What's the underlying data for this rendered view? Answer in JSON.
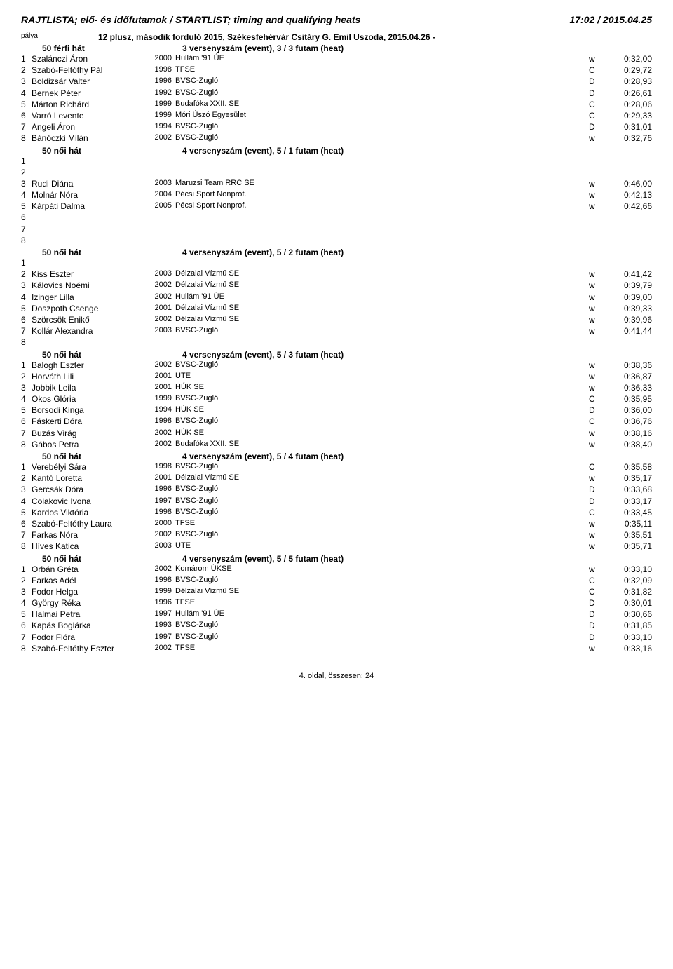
{
  "header": {
    "title": "RAJTLISTA; elő- és időfutamok / STARTLIST; timing and qualifying heats",
    "datetime": "17:02 / 2015.04.25"
  },
  "subheader": {
    "palya": "pálya",
    "title": "12 plusz, második forduló 2015, Székesfehérvár Csitáry G. Emil Uszoda, 2015.04.26 -"
  },
  "sections": [
    {
      "event_name": "50 férfi hát",
      "event_desc": "3 versenyszám (event),  3 / 3 futam (heat)",
      "rows": [
        {
          "n": "1",
          "name": "Szalánczi Áron",
          "y": "2000",
          "club": "Hullám '91 ÚE",
          "cat": "w",
          "t": "0:32,00"
        },
        {
          "n": "2",
          "name": "Szabó-Feltóthy Pál",
          "y": "1998",
          "club": "TFSE",
          "cat": "C",
          "t": "0:29,72"
        },
        {
          "n": "3",
          "name": "Boldizsár Valter",
          "y": "1996",
          "club": "BVSC-Zugló",
          "cat": "D",
          "t": "0:28,93"
        },
        {
          "n": "4",
          "name": "Bernek Péter",
          "y": "1992",
          "club": "BVSC-Zugló",
          "cat": "D",
          "t": "0:26,61"
        },
        {
          "n": "5",
          "name": "Márton Richárd",
          "y": "1999",
          "club": "Budafóka XXII. SE",
          "cat": "C",
          "t": "0:28,06"
        },
        {
          "n": "6",
          "name": "Varró Levente",
          "y": "1999",
          "club": "Móri Úszó Egyesület",
          "cat": "C",
          "t": "0:29,33"
        },
        {
          "n": "7",
          "name": "Angeli Áron",
          "y": "1994",
          "club": "BVSC-Zugló",
          "cat": "D",
          "t": "0:31,01"
        },
        {
          "n": "8",
          "name": "Bánóczki Milán",
          "y": "2002",
          "club": "BVSC-Zugló",
          "cat": "w",
          "t": "0:32,76"
        }
      ]
    },
    {
      "event_name": "50 női hát",
      "event_desc": "4 versenyszám (event),  5 / 1 futam (heat)",
      "rows": [
        {
          "n": "1",
          "name": "",
          "y": "",
          "club": "",
          "cat": "",
          "t": ""
        },
        {
          "n": "2",
          "name": "",
          "y": "",
          "club": "",
          "cat": "",
          "t": ""
        },
        {
          "n": "3",
          "name": "Rudi Diána",
          "y": "2003",
          "club": "Maruzsi Team RRC SE",
          "cat": "w",
          "t": "0:46,00"
        },
        {
          "n": "4",
          "name": "Molnár Nóra",
          "y": "2004",
          "club": "Pécsi Sport Nonprof.",
          "cat": "w",
          "t": "0:42,13"
        },
        {
          "n": "5",
          "name": "Kárpáti Dalma",
          "y": "2005",
          "club": "Pécsi Sport Nonprof.",
          "cat": "w",
          "t": "0:42,66"
        },
        {
          "n": "6",
          "name": "",
          "y": "",
          "club": "",
          "cat": "",
          "t": ""
        },
        {
          "n": "7",
          "name": "",
          "y": "",
          "club": "",
          "cat": "",
          "t": ""
        },
        {
          "n": "8",
          "name": "",
          "y": "",
          "club": "",
          "cat": "",
          "t": ""
        }
      ]
    },
    {
      "event_name": "50 női hát",
      "event_desc": "4 versenyszám (event),  5 / 2 futam (heat)",
      "rows": [
        {
          "n": "1",
          "name": "",
          "y": "",
          "club": "",
          "cat": "",
          "t": ""
        },
        {
          "n": "2",
          "name": "Kiss Eszter",
          "y": "2003",
          "club": "Délzalai Vízmű SE",
          "cat": "w",
          "t": "0:41,42"
        },
        {
          "n": "3",
          "name": "Kálovics Noémi",
          "y": "2002",
          "club": "Délzalai Vízmű SE",
          "cat": "w",
          "t": "0:39,79"
        },
        {
          "n": "4",
          "name": "Izinger Lilla",
          "y": "2002",
          "club": "Hullám '91 ÚE",
          "cat": "w",
          "t": "0:39,00"
        },
        {
          "n": "5",
          "name": "Doszpoth Csenge",
          "y": "2001",
          "club": "Délzalai Vízmű SE",
          "cat": "w",
          "t": "0:39,33"
        },
        {
          "n": "6",
          "name": "Szörcsök Enikő",
          "y": "2002",
          "club": "Délzalai Vízmű SE",
          "cat": "w",
          "t": "0:39,96"
        },
        {
          "n": "7",
          "name": "Kollár Alexandra",
          "y": "2003",
          "club": "BVSC-Zugló",
          "cat": "w",
          "t": "0:41,44"
        },
        {
          "n": "8",
          "name": "",
          "y": "",
          "club": "",
          "cat": "",
          "t": ""
        }
      ]
    },
    {
      "event_name": "50 női hát",
      "event_desc": "4 versenyszám (event),  5 / 3 futam (heat)",
      "rows": [
        {
          "n": "1",
          "name": "Balogh Eszter",
          "y": "2002",
          "club": "BVSC-Zugló",
          "cat": "w",
          "t": "0:38,36"
        },
        {
          "n": "2",
          "name": "Horváth Lili",
          "y": "2001",
          "club": "UTE",
          "cat": "w",
          "t": "0:36,87"
        },
        {
          "n": "3",
          "name": "Jobbik Leila",
          "y": "2001",
          "club": "HÚK SE",
          "cat": "w",
          "t": "0:36,33"
        },
        {
          "n": "4",
          "name": "Okos Glória",
          "y": "1999",
          "club": "BVSC-Zugló",
          "cat": "C",
          "t": "0:35,95"
        },
        {
          "n": "5",
          "name": "Borsodi Kinga",
          "y": "1994",
          "club": "HÚK SE",
          "cat": "D",
          "t": "0:36,00"
        },
        {
          "n": "6",
          "name": "Fáskerti Dóra",
          "y": "1998",
          "club": "BVSC-Zugló",
          "cat": "C",
          "t": "0:36,76"
        },
        {
          "n": "7",
          "name": "Buzás Virág",
          "y": "2002",
          "club": "HÚK SE",
          "cat": "w",
          "t": "0:38,16"
        },
        {
          "n": "8",
          "name": "Gábos Petra",
          "y": "2002",
          "club": "Budafóka XXII. SE",
          "cat": "w",
          "t": "0:38,40"
        }
      ]
    },
    {
      "event_name": "50 női hát",
      "event_desc": "4 versenyszám (event),  5 / 4 futam (heat)",
      "rows": [
        {
          "n": "1",
          "name": "Verebélyi Sára",
          "y": "1998",
          "club": "BVSC-Zugló",
          "cat": "C",
          "t": "0:35,58"
        },
        {
          "n": "2",
          "name": "Kantó Loretta",
          "y": "2001",
          "club": "Délzalai Vízmű SE",
          "cat": "w",
          "t": "0:35,17"
        },
        {
          "n": "3",
          "name": "Gercsák Dóra",
          "y": "1996",
          "club": "BVSC-Zugló",
          "cat": "D",
          "t": "0:33,68"
        },
        {
          "n": "4",
          "name": "Colakovic Ivona",
          "y": "1997",
          "club": "BVSC-Zugló",
          "cat": "D",
          "t": "0:33,17"
        },
        {
          "n": "5",
          "name": "Kardos Viktória",
          "y": "1998",
          "club": "BVSC-Zugló",
          "cat": "C",
          "t": "0:33,45"
        },
        {
          "n": "6",
          "name": "Szabó-Feltóthy Laura",
          "y": "2000",
          "club": "TFSE",
          "cat": "w",
          "t": "0:35,11"
        },
        {
          "n": "7",
          "name": "Farkas Nóra",
          "y": "2002",
          "club": "BVSC-Zugló",
          "cat": "w",
          "t": "0:35,51"
        },
        {
          "n": "8",
          "name": "Híves Katica",
          "y": "2003",
          "club": "UTE",
          "cat": "w",
          "t": "0:35,71"
        }
      ]
    },
    {
      "event_name": "50 női hát",
      "event_desc": "4 versenyszám (event),  5 / 5 futam (heat)",
      "rows": [
        {
          "n": "1",
          "name": "Orbán Gréta",
          "y": "2002",
          "club": "Komárom ÚKSE",
          "cat": "w",
          "t": "0:33,10"
        },
        {
          "n": "2",
          "name": "Farkas Adél",
          "y": "1998",
          "club": "BVSC-Zugló",
          "cat": "C",
          "t": "0:32,09"
        },
        {
          "n": "3",
          "name": "Fodor Helga",
          "y": "1999",
          "club": "Délzalai Vízmű SE",
          "cat": "C",
          "t": "0:31,82"
        },
        {
          "n": "4",
          "name": "György Réka",
          "y": "1996",
          "club": "TFSE",
          "cat": "D",
          "t": "0:30,01"
        },
        {
          "n": "5",
          "name": "Halmai Petra",
          "y": "1997",
          "club": "Hullám '91 ÚE",
          "cat": "D",
          "t": "0:30,66"
        },
        {
          "n": "6",
          "name": "Kapás Boglárka",
          "y": "1993",
          "club": "BVSC-Zugló",
          "cat": "D",
          "t": "0:31,85"
        },
        {
          "n": "7",
          "name": "Fodor Flóra",
          "y": "1997",
          "club": "BVSC-Zugló",
          "cat": "D",
          "t": "0:33,10"
        },
        {
          "n": "8",
          "name": "Szabó-Feltóthy Eszter",
          "y": "2002",
          "club": "TFSE",
          "cat": "w",
          "t": "0:33,16"
        }
      ]
    }
  ],
  "footer": "4. oldal, összesen: 24"
}
